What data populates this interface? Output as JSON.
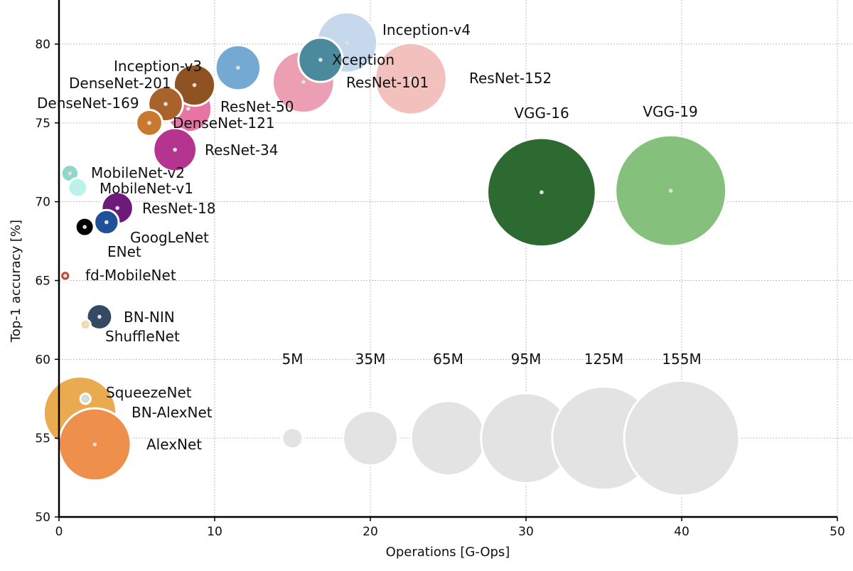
{
  "chart_data": {
    "type": "scatter",
    "title": "",
    "xlabel": "Operations [G-Ops]",
    "ylabel": "Top-1 accuracy [%]",
    "xlim": [
      0,
      50
    ],
    "ylim": [
      50,
      82
    ],
    "xticks": [
      0,
      10,
      20,
      30,
      40,
      50
    ],
    "yticks": [
      50,
      55,
      60,
      65,
      70,
      75,
      80
    ],
    "grid": true,
    "size_encoding": "parameters (millions)",
    "points": [
      {
        "name": "VGG-19",
        "x": 39.3,
        "y": 70.7,
        "size_M": 144,
        "color": "#85c17c"
      },
      {
        "name": "VGG-16",
        "x": 31.0,
        "y": 70.6,
        "size_M": 138,
        "color": "#2d6a32"
      },
      {
        "name": "ResNet-152",
        "x": 22.6,
        "y": 77.8,
        "size_M": 60,
        "color": "#f2c0bd"
      },
      {
        "name": "Inception-v4",
        "x": 18.5,
        "y": 80.1,
        "size_M": 42.7,
        "color": "#c6d8ec"
      },
      {
        "name": "ResNet-101",
        "x": 15.7,
        "y": 77.6,
        "size_M": 44.5,
        "color": "#ec9fb2"
      },
      {
        "name": "Xception",
        "x": 16.8,
        "y": 79.0,
        "size_M": 22.9,
        "color": "#4b8a9c"
      },
      {
        "name": "Inception-v3",
        "x": 11.5,
        "y": 78.5,
        "size_M": 23.8,
        "color": "#74a9d3"
      },
      {
        "name": "ResNet-50",
        "x": 8.3,
        "y": 75.9,
        "size_M": 25.6,
        "color": "#e874a4"
      },
      {
        "name": "DenseNet-201",
        "x": 8.7,
        "y": 77.4,
        "size_M": 20,
        "color": "#8f5323"
      },
      {
        "name": "DenseNet-169",
        "x": 6.85,
        "y": 76.2,
        "size_M": 14,
        "color": "#a9622a"
      },
      {
        "name": "DenseNet-121",
        "x": 5.8,
        "y": 75.0,
        "size_M": 8,
        "color": "#c8792e"
      },
      {
        "name": "ResNet-34",
        "x": 7.45,
        "y": 73.3,
        "size_M": 21.8,
        "color": "#b4348f"
      },
      {
        "name": "MobileNet-v2",
        "x": 0.7,
        "y": 71.8,
        "size_M": 3.5,
        "color": "#8fd6cb"
      },
      {
        "name": "MobileNet-v1",
        "x": 1.2,
        "y": 70.9,
        "size_M": 4.2,
        "color": "#b8f3ec"
      },
      {
        "name": "ResNet-18",
        "x": 3.75,
        "y": 69.6,
        "size_M": 11.7,
        "color": "#6e1a7a"
      },
      {
        "name": "GoogLeNet",
        "x": 3.05,
        "y": 68.7,
        "size_M": 7,
        "color": "#1f5199"
      },
      {
        "name": "ENet",
        "x": 1.65,
        "y": 68.4,
        "size_M": 4,
        "color": "#000000"
      },
      {
        "name": "fd-MobileNet",
        "x": 0.4,
        "y": 65.3,
        "size_M": 1.2,
        "color": "#c0452f"
      },
      {
        "name": "BN-NIN",
        "x": 2.6,
        "y": 62.7,
        "size_M": 7.6,
        "color": "#344a63"
      },
      {
        "name": "ShuffleNet",
        "x": 1.7,
        "y": 62.2,
        "size_M": 1.2,
        "color": "#f3dc92"
      },
      {
        "name": "BN-AlexNet",
        "x": 1.35,
        "y": 56.6,
        "size_M": 62,
        "color": "#e9aa50"
      },
      {
        "name": "SqueezeNet",
        "x": 1.7,
        "y": 57.5,
        "size_M": 1.2,
        "color": "#c8e0cc"
      },
      {
        "name": "AlexNet",
        "x": 2.3,
        "y": 54.6,
        "size_M": 61,
        "color": "#ef8f4c"
      }
    ],
    "size_legend": {
      "color": "#e3e3e3",
      "y": 55,
      "items": [
        {
          "label": "5M",
          "x": 15,
          "size_M": 5
        },
        {
          "label": "35M",
          "x": 20,
          "size_M": 35
        },
        {
          "label": "65M",
          "x": 25,
          "size_M": 65
        },
        {
          "label": "95M",
          "x": 30,
          "size_M": 95
        },
        {
          "label": "125M",
          "x": 35,
          "size_M": 125
        },
        {
          "label": "155M",
          "x": 40,
          "size_M": 155
        }
      ]
    }
  }
}
